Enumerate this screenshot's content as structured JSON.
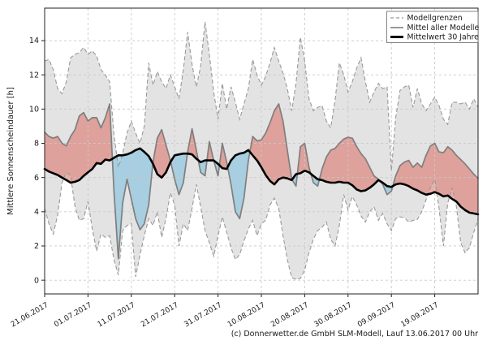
{
  "legend": {
    "items": [
      "Modellgrenzen",
      "Mittel aller Modelle",
      "Mittelwert 30 Jahre"
    ]
  },
  "footer": {
    "copyright": "(c) Donnerwetter.de GmbH SLM-Modell, Lauf 13.06.2017 00 Uhr"
  },
  "colors": {
    "background": "#ffffff",
    "band": "#e3e3e3",
    "bound_line": "#999999",
    "model_mean_line": "#7f7f7f",
    "climatology_line": "#000000",
    "above_fill": "#d96459",
    "below_fill": "#7fbfdf",
    "grid": "#c9c9c9",
    "spine": "#222222",
    "text": "#1a1a1a",
    "legend_border": "#666666"
  },
  "chart_data": {
    "type": "line",
    "title": "",
    "xlabel": "",
    "ylabel": "Mittlere Sonnenscheindauer [h]",
    "grid": true,
    "legend_position": "upper right",
    "ylim": [
      -0.8,
      15.9
    ],
    "xlim_days": [
      0,
      100
    ],
    "y_ticks": [
      0,
      2,
      4,
      6,
      8,
      10,
      12,
      14
    ],
    "x_ticks": [
      {
        "day": 0,
        "label": "21.06.2017"
      },
      {
        "day": 10,
        "label": "01.07.2017"
      },
      {
        "day": 20,
        "label": "11.07.2017"
      },
      {
        "day": 30,
        "label": "21.07.2017"
      },
      {
        "day": 40,
        "label": "31.07.2017"
      },
      {
        "day": 50,
        "label": "10.08.2017"
      },
      {
        "day": 60,
        "label": "20.08.2017"
      },
      {
        "day": 70,
        "label": "30.08.2017"
      },
      {
        "day": 80,
        "label": "09.09.2017"
      },
      {
        "day": 90,
        "label": "19.09.2017"
      }
    ],
    "series": {
      "upper": {
        "name": "Modellgrenzen (obere Grenze)",
        "values": [
          12.8,
          12.9,
          12.3,
          11.2,
          10.9,
          11.6,
          13.0,
          13.2,
          13.3,
          13.6,
          13.2,
          13.4,
          13.1,
          12.3,
          12.0,
          11.6,
          8.5,
          6.6,
          7.4,
          8.6,
          9.3,
          8.6,
          8.0,
          9.0,
          12.7,
          11.4,
          12.2,
          11.6,
          11.2,
          12.0,
          11.3,
          10.6,
          12.3,
          14.5,
          12.6,
          11.3,
          12.5,
          15.1,
          13.2,
          11.0,
          9.4,
          11.5,
          10.0,
          11.3,
          10.4,
          9.4,
          10.3,
          11.2,
          12.9,
          12.0,
          11.4,
          11.9,
          12.7,
          13.6,
          12.8,
          12.1,
          11.2,
          9.9,
          11.5,
          14.2,
          12.8,
          10.6,
          9.9,
          10.1,
          10.2,
          9.3,
          8.9,
          10.5,
          12.7,
          12.0,
          11.0,
          11.6,
          12.4,
          13.0,
          11.6,
          10.4,
          11.0,
          11.5,
          11.2,
          11.3,
          6.4,
          9.5,
          11.1,
          11.3,
          11.4,
          10.1,
          11.2,
          10.3,
          9.9,
          10.3,
          10.7,
          10.2,
          9.4,
          9.1,
          10.4,
          10.4,
          10.3,
          10.4,
          10.0,
          10.6,
          10.1
        ]
      },
      "lower": {
        "name": "Modellgrenzen (untere Grenze)",
        "values": [
          4.2,
          3.3,
          2.7,
          3.8,
          5.7,
          6.3,
          6.1,
          4.3,
          3.5,
          3.6,
          4.6,
          3.0,
          1.7,
          2.7,
          2.5,
          2.6,
          1.2,
          0.3,
          2.9,
          3.2,
          3.3,
          0.2,
          1.5,
          2.6,
          3.6,
          3.2,
          4.0,
          2.5,
          3.6,
          5.1,
          4.4,
          2.0,
          3.3,
          2.9,
          4.2,
          5.6,
          4.3,
          2.9,
          2.2,
          1.4,
          2.6,
          3.7,
          2.8,
          1.9,
          1.2,
          1.5,
          2.3,
          3.0,
          3.5,
          2.6,
          3.3,
          3.5,
          4.4,
          4.8,
          4.2,
          2.6,
          1.2,
          0.15,
          0.05,
          0.1,
          0.6,
          1.6,
          2.4,
          2.9,
          3.1,
          3.4,
          2.4,
          2.0,
          3.2,
          5.0,
          4.1,
          4.9,
          4.4,
          3.75,
          3.4,
          4.0,
          4.3,
          3.5,
          3.9,
          3.3,
          2.9,
          3.6,
          3.7,
          3.65,
          3.4,
          3.5,
          3.55,
          4.0,
          4.7,
          5.4,
          5.9,
          4.2,
          2.0,
          4.5,
          5.4,
          4.3,
          2.2,
          1.6,
          1.9,
          2.8,
          3.55
        ]
      },
      "model_mean": {
        "name": "Mittel aller Modelle",
        "values": [
          8.65,
          8.4,
          8.3,
          8.4,
          8.0,
          7.85,
          8.4,
          8.8,
          9.6,
          9.8,
          9.3,
          9.5,
          9.5,
          8.9,
          9.5,
          10.3,
          5.2,
          1.25,
          4.5,
          5.9,
          4.75,
          3.6,
          2.95,
          3.3,
          4.4,
          6.9,
          8.3,
          8.8,
          7.9,
          7.0,
          5.9,
          5.0,
          5.7,
          7.5,
          8.85,
          7.6,
          6.3,
          6.1,
          8.1,
          7.0,
          6.1,
          8.0,
          6.9,
          5.6,
          4.0,
          3.6,
          4.8,
          7.0,
          8.4,
          8.15,
          8.2,
          8.6,
          9.2,
          9.9,
          10.3,
          9.3,
          7.6,
          5.9,
          5.5,
          7.8,
          8.0,
          6.6,
          5.7,
          5.5,
          6.5,
          7.2,
          7.6,
          7.7,
          8.0,
          8.25,
          8.35,
          8.3,
          7.8,
          7.4,
          7.1,
          6.6,
          6.1,
          5.9,
          5.6,
          5.0,
          5.2,
          6.1,
          6.7,
          6.9,
          7.0,
          6.6,
          6.85,
          6.6,
          7.3,
          7.85,
          8.0,
          7.5,
          7.45,
          7.8,
          7.6,
          7.3,
          7.05,
          6.8,
          6.5,
          6.2,
          5.95
        ]
      },
      "climatology": {
        "name": "Mittelwert 30 Jahre",
        "values": [
          6.5,
          6.35,
          6.25,
          6.15,
          6.0,
          5.85,
          5.7,
          5.75,
          5.85,
          6.1,
          6.3,
          6.5,
          6.85,
          6.8,
          7.05,
          7.0,
          7.15,
          7.3,
          7.3,
          7.35,
          7.45,
          7.6,
          7.7,
          7.5,
          7.25,
          6.8,
          6.2,
          6.0,
          6.3,
          6.9,
          7.3,
          7.35,
          7.4,
          7.4,
          7.35,
          7.1,
          6.9,
          7.0,
          7.0,
          7.0,
          6.8,
          6.55,
          6.5,
          7.0,
          7.3,
          7.4,
          7.45,
          7.6,
          7.3,
          7.0,
          6.6,
          6.15,
          5.8,
          5.6,
          5.9,
          6.0,
          5.95,
          5.85,
          6.2,
          6.25,
          6.4,
          6.3,
          6.1,
          5.9,
          5.85,
          5.75,
          5.7,
          5.7,
          5.75,
          5.7,
          5.7,
          5.55,
          5.3,
          5.2,
          5.25,
          5.4,
          5.6,
          5.85,
          5.7,
          5.5,
          5.45,
          5.6,
          5.65,
          5.6,
          5.5,
          5.35,
          5.25,
          5.1,
          5.0,
          5.05,
          5.15,
          5.05,
          4.9,
          4.95,
          4.75,
          4.6,
          4.3,
          4.1,
          3.95,
          3.9,
          3.85
        ]
      }
    }
  }
}
